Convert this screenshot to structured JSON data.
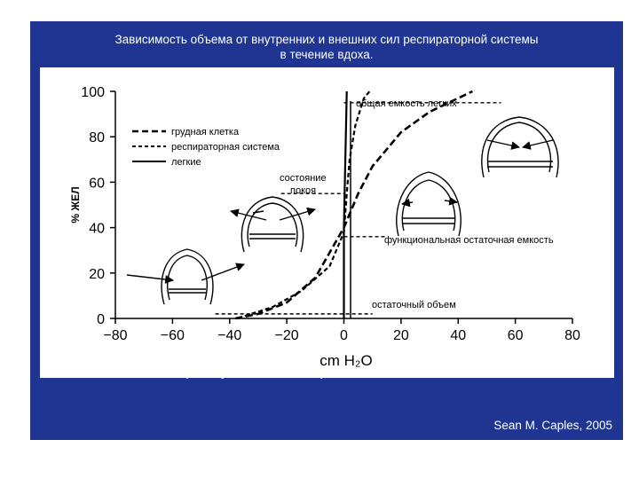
{
  "slide": {
    "title_line1": "Зависимость объема от внутренних и внешних сил респираторной системы",
    "title_line2": "в течение вдоха.",
    "caption": "Стрелки указывают на направление эластической тяги.",
    "credit": "Sean M. Caples, 2005",
    "background_color": "#1f3591"
  },
  "chart_data": {
    "type": "line",
    "xlabel": "cm H₂O",
    "ylabel": "% ЖЕЛ",
    "xlim": [
      -80,
      80
    ],
    "ylim": [
      0,
      100
    ],
    "xticks": [
      -80,
      -60,
      -40,
      -20,
      0,
      20,
      40,
      60,
      80
    ],
    "xtick_labels": [
      "−80",
      "−60",
      "−40",
      "−20",
      "0",
      "20",
      "40",
      "60",
      "80"
    ],
    "yticks": [
      0,
      20,
      40,
      60,
      80,
      100
    ],
    "ytick_labels": [
      "0",
      "20",
      "40",
      "60",
      "80",
      "100"
    ],
    "legend_position": "top-left",
    "series": [
      {
        "name": "грудная клетка",
        "style": "dashed",
        "points": [
          [
            -38,
            0
          ],
          [
            -30,
            2
          ],
          [
            -20,
            7
          ],
          [
            -10,
            18
          ],
          [
            0,
            40
          ],
          [
            5,
            55
          ],
          [
            10,
            67
          ],
          [
            20,
            82
          ],
          [
            30,
            91
          ],
          [
            40,
            97
          ],
          [
            45,
            100
          ]
        ]
      },
      {
        "name": "респираторная система",
        "style": "short-dashed",
        "points": [
          [
            -37,
            0
          ],
          [
            -35,
            1
          ],
          [
            -25,
            5
          ],
          [
            -15,
            12
          ],
          [
            -5,
            23
          ],
          [
            0,
            38
          ],
          [
            1,
            55
          ],
          [
            2,
            70
          ],
          [
            4,
            85
          ],
          [
            7,
            97
          ],
          [
            9,
            100
          ]
        ]
      },
      {
        "name": "легкие",
        "style": "solid",
        "points": [
          [
            0,
            0
          ],
          [
            0,
            40
          ],
          [
            1,
            100
          ]
        ]
      }
    ],
    "annotations": [
      {
        "text": "общая емкость легких",
        "x": 15,
        "y": 104
      },
      {
        "text": "состояние",
        "x": -22,
        "y": 67
      },
      {
        "text": "покоя",
        "x": -15,
        "y": 61
      },
      {
        "text": "функциональная остаточная емкость",
        "x": 14,
        "y": 37
      },
      {
        "text": "остаточный объем",
        "x": 34,
        "y": 4
      }
    ],
    "reference_lines": [
      {
        "label": "total",
        "y": 95,
        "x_from": 0,
        "x_to": 55
      },
      {
        "label": "rest",
        "y": 55,
        "x_from": -22,
        "x_to": 0
      },
      {
        "label": "frc",
        "y": 36,
        "x_from": 0,
        "x_to": 15
      },
      {
        "label": "residual",
        "y": 2,
        "x_from": -45,
        "x_to": 10
      }
    ]
  }
}
